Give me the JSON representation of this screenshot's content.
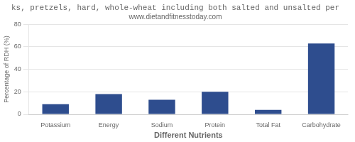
{
  "chart_data": {
    "type": "bar",
    "title": "ks, pretzels, hard, whole-wheat including both salted and unsalted per",
    "subtitle": "www.dietandfitnesstoday.com",
    "xlabel": "Different Nutrients",
    "ylabel": "Percentage of RDH (%)",
    "categories": [
      "Potassium",
      "Energy",
      "Sodium",
      "Protein",
      "Total Fat",
      "Carbohydrate"
    ],
    "values": [
      9,
      18,
      13,
      20,
      4,
      63
    ],
    "color": "#2e4d8e",
    "ylim": [
      0,
      80
    ],
    "yticks": [
      0,
      20,
      40,
      60,
      80
    ],
    "grid": true
  }
}
